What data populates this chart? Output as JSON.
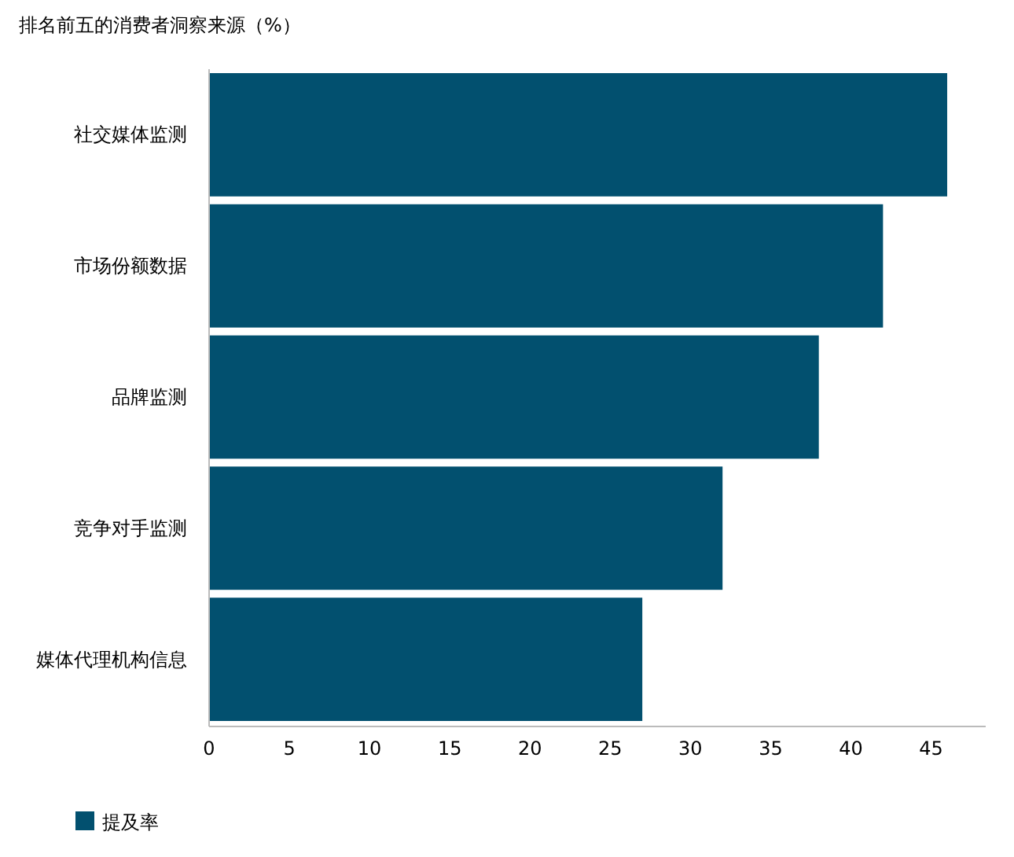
{
  "chart_data": {
    "type": "bar",
    "orientation": "horizontal",
    "title": "排名前五的消费者洞察来源（%）",
    "categories": [
      "社交媒体监测",
      "市场份额数据",
      "品牌监测",
      "竞争对手监测",
      "媒体代理机构信息"
    ],
    "series": [
      {
        "name": "提及率",
        "color": "#02506f",
        "values": [
          46,
          42,
          38,
          32,
          27
        ]
      }
    ],
    "xlim": [
      0,
      48.4
    ],
    "xticks": [
      0,
      5,
      10,
      15,
      20,
      25,
      30,
      35,
      40,
      45
    ],
    "grid": false,
    "legend": "bottom left"
  }
}
